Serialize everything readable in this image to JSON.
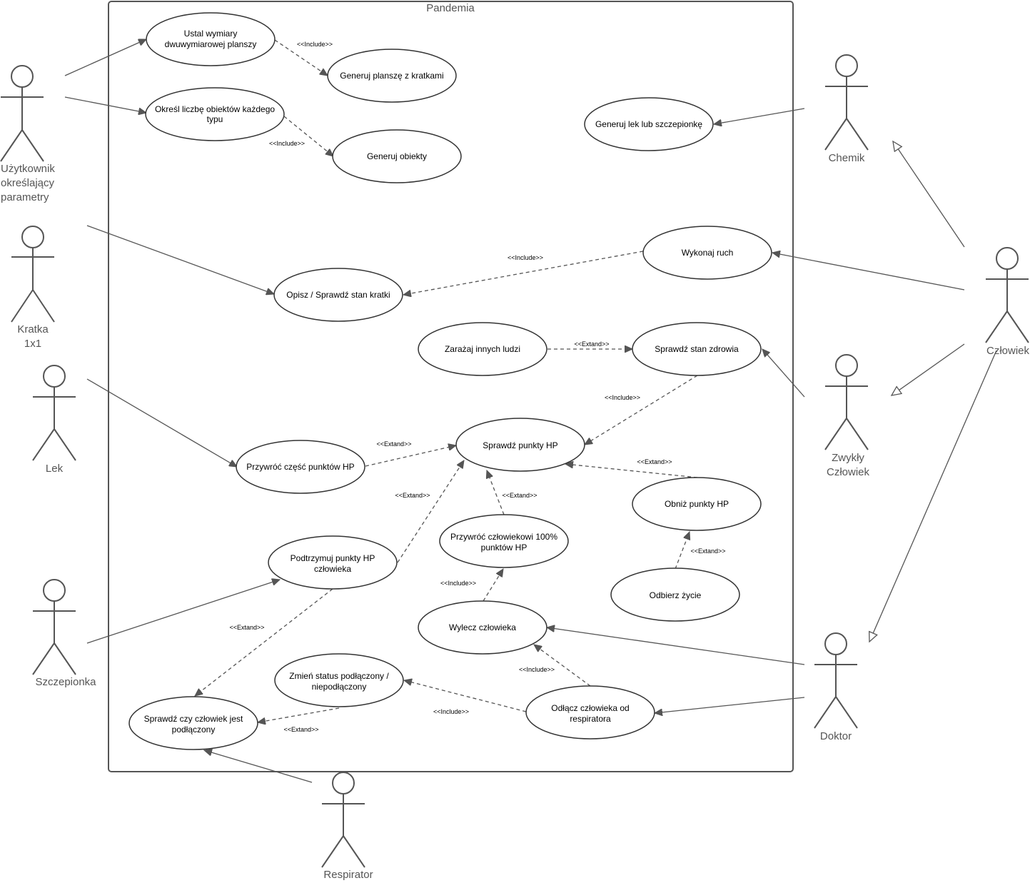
{
  "system": {
    "title": "Pandemia"
  },
  "actors": {
    "uzytkownik": {
      "lines": [
        "Użytkownik",
        "określający",
        "parametry"
      ]
    },
    "kratka": {
      "lines": [
        "Kratka",
        "1x1"
      ]
    },
    "lek": {
      "lines": [
        "Lek"
      ]
    },
    "szczepionka": {
      "lines": [
        "Szczepionka"
      ]
    },
    "respirator": {
      "lines": [
        "Respirator"
      ]
    },
    "chemik": {
      "lines": [
        "Chemik"
      ]
    },
    "czlowiek": {
      "lines": [
        "Człowiek"
      ]
    },
    "zwykly": {
      "lines": [
        "Zwykły",
        "Człowiek"
      ]
    },
    "doktor": {
      "lines": [
        "Doktor"
      ]
    }
  },
  "use_cases": {
    "ustal": {
      "lines": [
        "Ustal wymiary",
        "dwuwymiarowej planszy"
      ]
    },
    "generuj_plansze": {
      "lines": [
        "Generuj planszę z kratkami"
      ]
    },
    "okresl": {
      "lines": [
        "Określ liczbę obiektów każdego",
        "typu"
      ]
    },
    "generuj_obiekty": {
      "lines": [
        "Generuj obiekty"
      ]
    },
    "generuj_lek": {
      "lines": [
        "Generuj lek lub szczepionkę"
      ]
    },
    "wykonaj_ruch": {
      "lines": [
        "Wykonaj ruch"
      ]
    },
    "opisz": {
      "lines": [
        "Opisz / Sprawdź stan kratki"
      ]
    },
    "zarazaj": {
      "lines": [
        "Zarażaj innych ludzi"
      ]
    },
    "stan_zdrowia": {
      "lines": [
        "Sprawdź stan zdrowia"
      ]
    },
    "punkty_hp": {
      "lines": [
        "Sprawdź punkty HP"
      ]
    },
    "przywroc_czesc": {
      "lines": [
        "Przywróć część punktów HP"
      ]
    },
    "obniz": {
      "lines": [
        "Obniż punkty HP"
      ]
    },
    "przywroc_100": {
      "lines": [
        "Przywróć człowiekowi 100%",
        "punktów HP"
      ]
    },
    "podtrzymuj": {
      "lines": [
        "Podtrzymuj punkty HP",
        "człowieka"
      ]
    },
    "odbierz": {
      "lines": [
        "Odbierz życie"
      ]
    },
    "wylecz": {
      "lines": [
        "Wylecz człowieka"
      ]
    },
    "zmien_status": {
      "lines": [
        "Zmień status podłączony /",
        "niepodłączony"
      ]
    },
    "odlacz": {
      "lines": [
        "Odłącz człowieka od",
        "respiratora"
      ]
    },
    "sprawdz_podlaczony": {
      "lines": [
        "Sprawdź czy człowiek jest",
        "podłączony"
      ]
    }
  },
  "relationships": {
    "include_ustal": "<<Include>>",
    "include_okresl": "<<Include>>",
    "include_wykonaj": "<<Include>>",
    "extend_zarazaj": "<<Extand>>",
    "include_stan": "<<Include>>",
    "extend_przywroc_czesc": "<<Extand>>",
    "extend_obniz": "<<Extand>>",
    "extend_podtrzymuj_hp": "<<Extand>>",
    "extend_przywroc_100": "<<Extand>>",
    "include_wylecz": "<<Include>>",
    "extend_odbierz": "<<Extand>>",
    "include_odlacz_wylecz": "<<Include>>",
    "include_odlacz_zmien": "<<Include>>",
    "extend_podtrzymuj_podlaczony": "<<Extand>>",
    "extend_zmien": "<<Extand>>"
  }
}
